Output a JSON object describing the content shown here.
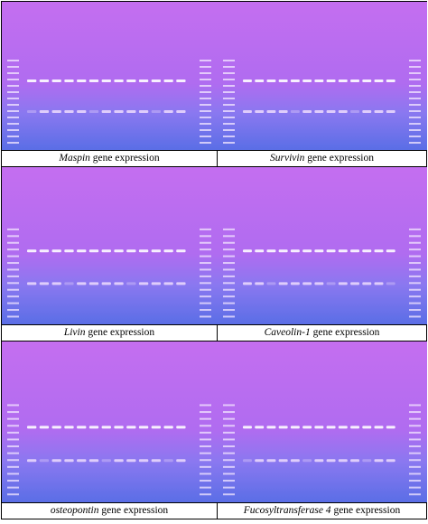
{
  "panels": [
    {
      "gene": "Maspin",
      "suffix": "gene expression"
    },
    {
      "gene": "Survivin",
      "suffix": "gene expression"
    },
    {
      "gene": "Livin",
      "suffix": "gene expression"
    },
    {
      "gene": "Caveolin-1",
      "suffix": "gene expression"
    },
    {
      "gene": "osteopontin",
      "suffix": "gene expression"
    },
    {
      "gene": "Fucosyltransferase 4",
      "suffix": "gene expression"
    }
  ]
}
